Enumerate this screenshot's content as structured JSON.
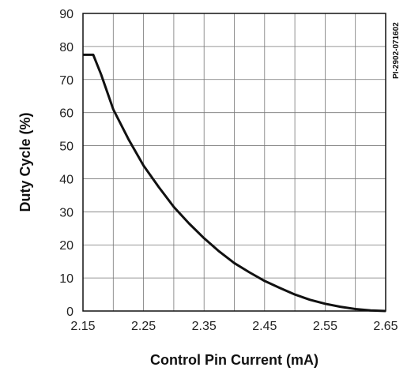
{
  "chart_data": {
    "type": "line",
    "xlabel": "Control Pin Current (mA)",
    "ylabel": "Duty Cycle (%)",
    "xlim": [
      2.15,
      2.65
    ],
    "ylim": [
      0,
      90
    ],
    "x_ticks": [
      2.15,
      2.2,
      2.25,
      2.3,
      2.35,
      2.4,
      2.45,
      2.5,
      2.55,
      2.6,
      2.65
    ],
    "x_tick_labels": [
      "2.15",
      "",
      "2.25",
      "",
      "2.35",
      "",
      "2.45",
      "",
      "2.55",
      "",
      "2.65"
    ],
    "y_ticks": [
      0,
      10,
      20,
      30,
      40,
      50,
      60,
      70,
      80,
      90
    ],
    "y_tick_labels": [
      "0",
      "10",
      "20",
      "30",
      "40",
      "50",
      "60",
      "70",
      "80",
      "90"
    ],
    "grid": true,
    "series": [
      {
        "x": [
          2.15,
          2.167,
          2.18,
          2.2,
          2.225,
          2.25,
          2.275,
          2.3,
          2.325,
          2.35,
          2.375,
          2.4,
          2.425,
          2.45,
          2.475,
          2.5,
          2.525,
          2.55,
          2.575,
          2.6,
          2.625,
          2.65
        ],
        "y": [
          77.5,
          77.5,
          71.5,
          61,
          52,
          44,
          37.5,
          31.5,
          26.5,
          22,
          18,
          14.5,
          11.7,
          9.1,
          7,
          5,
          3.4,
          2.2,
          1.3,
          0.6,
          0.2,
          0
        ],
        "color": "#111111"
      }
    ],
    "annotation": "PI-2902-071602"
  }
}
